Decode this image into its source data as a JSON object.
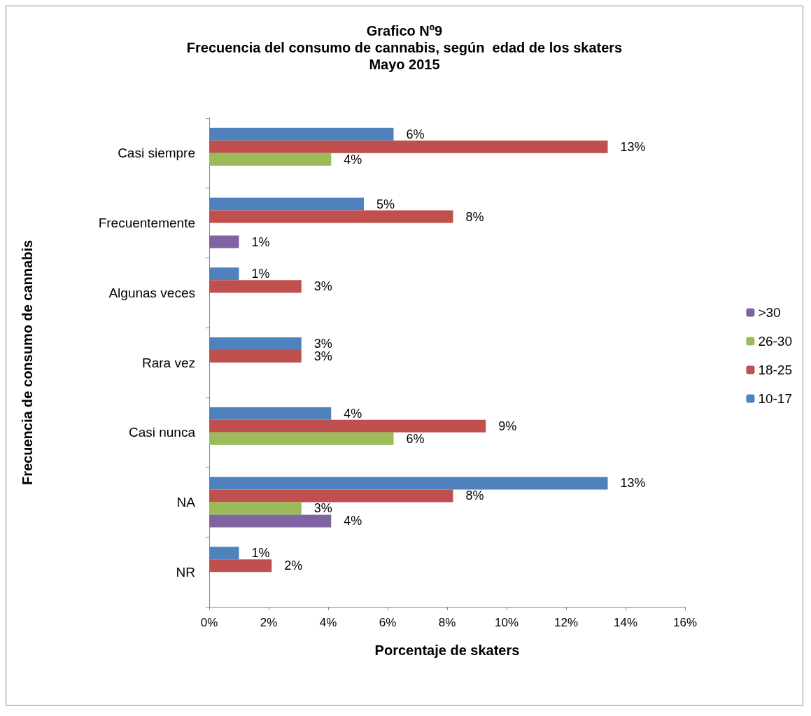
{
  "chart_data": {
    "type": "bar",
    "orientation": "horizontal",
    "title": "Grafico Nº9\nFrecuencia del consumo de cannabis, según  edad de los skaters\nMayo 2015",
    "xlabel": "Porcentaje de skaters",
    "ylabel": "Frecuencia de consumo de cannabis",
    "categories": [
      "Casi siempre",
      "Frecuentemente",
      "Algunas veces",
      "Rara vez",
      "Casi nunca",
      "NA",
      "NR"
    ],
    "series": [
      {
        "name": "10-17",
        "color": "#4f81bd",
        "values": [
          6.2,
          5.2,
          1.0,
          3.1,
          4.1,
          13.4,
          1.0
        ],
        "value_labels": [
          "6%",
          "5%",
          "1%",
          "3%",
          "4%",
          "13%",
          "1%"
        ]
      },
      {
        "name": "18-25",
        "color": "#c0504d",
        "values": [
          13.4,
          8.2,
          3.1,
          3.1,
          9.3,
          8.2,
          2.1
        ],
        "value_labels": [
          "13%",
          "8%",
          "3%",
          "3%",
          "9%",
          "8%",
          "2%"
        ]
      },
      {
        "name": "26-30",
        "color": "#9bbb59",
        "values": [
          4.1,
          null,
          null,
          null,
          6.2,
          3.1,
          null
        ],
        "value_labels": [
          "4%",
          null,
          null,
          null,
          "6%",
          "3%",
          null
        ]
      },
      {
        "name": ">30",
        "color": "#8064a2",
        "values": [
          null,
          1.0,
          null,
          null,
          null,
          4.1,
          null
        ],
        "value_labels": [
          null,
          "1%",
          null,
          null,
          null,
          "4%",
          null
        ]
      }
    ],
    "xlim": [
      0,
      16
    ],
    "xticks": [
      {
        "value": 0,
        "label": "0%"
      },
      {
        "value": 2,
        "label": "2%"
      },
      {
        "value": 4,
        "label": "4%"
      },
      {
        "value": 6,
        "label": "6%"
      },
      {
        "value": 8,
        "label": "8%"
      },
      {
        "value": 10,
        "label": "10%"
      },
      {
        "value": 12,
        "label": "12%"
      },
      {
        "value": 14,
        "label": "14%"
      },
      {
        "value": 16,
        "label": "16%"
      }
    ],
    "legend": "right",
    "grid": false
  }
}
